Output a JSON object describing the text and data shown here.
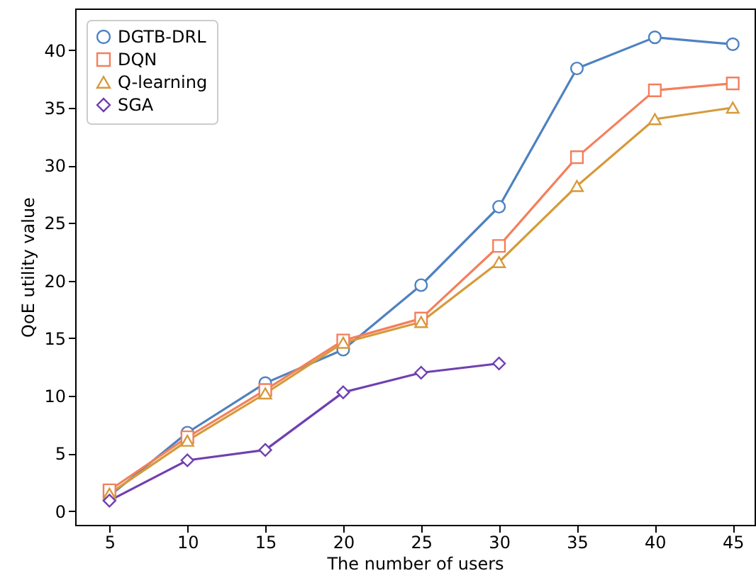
{
  "chart_data": {
    "type": "line",
    "xlabel": "The number of users",
    "ylabel": "QoE utility value",
    "x": [
      5,
      10,
      15,
      20,
      25,
      30,
      35,
      40,
      45
    ],
    "xlim": [
      2.8,
      46.4
    ],
    "xticks": [
      5,
      10,
      15,
      20,
      25,
      30,
      35,
      40,
      45
    ],
    "ylim": [
      -1.2,
      43.6
    ],
    "yticks": [
      0,
      5,
      10,
      15,
      20,
      25,
      30,
      35,
      40
    ],
    "grid": false,
    "legend": "top left",
    "line_style": "solid",
    "series": [
      {
        "name": "DGTB-DRL",
        "color": "#4e82c0",
        "marker": "circle",
        "values": [
          1.3,
          6.8,
          11.1,
          14.0,
          19.6,
          26.4,
          38.4,
          41.1,
          40.5
        ]
      },
      {
        "name": "DQN",
        "color": "#f47f5c",
        "marker": "square",
        "values": [
          1.8,
          6.4,
          10.5,
          14.8,
          16.7,
          23.0,
          30.7,
          36.5,
          37.1
        ]
      },
      {
        "name": "Q-learning",
        "color": "#d69a3a",
        "marker": "triangle",
        "values": [
          1.5,
          6.1,
          10.2,
          14.6,
          16.4,
          21.6,
          28.2,
          34.0,
          35.0
        ]
      },
      {
        "name": "SGA",
        "color": "#7040b0",
        "marker": "diamond",
        "values": [
          0.9,
          4.4,
          5.3,
          10.3,
          12.0,
          12.8,
          null,
          null,
          null
        ]
      }
    ]
  }
}
